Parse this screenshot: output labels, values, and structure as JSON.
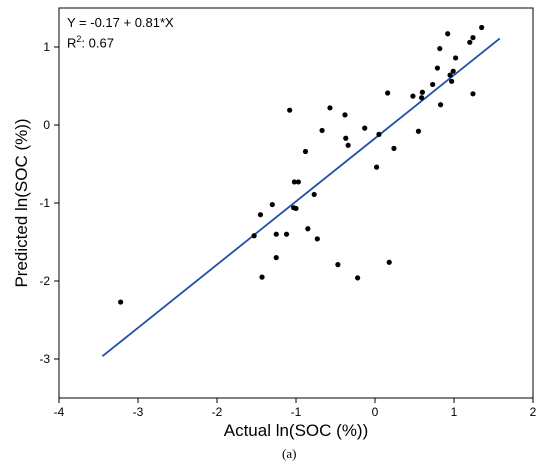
{
  "chart_data": {
    "type": "scatter",
    "xlabel": "Actual ln(SOC (%))",
    "ylabel": "Predicted ln(SOC (%))",
    "xlim": [
      -4,
      2
    ],
    "ylim": [
      -3.5,
      1.5
    ],
    "x_ticks": [
      -4,
      -3,
      -2,
      -1,
      0,
      1,
      2
    ],
    "y_ticks": [
      -3,
      -2,
      -1,
      0,
      1
    ],
    "grid": false,
    "annotations": {
      "equation": "Y = -0.17 + 0.81*X",
      "r2_prefix": "R",
      "r2_sup": "2",
      "r2_value": ": 0.67"
    },
    "fit_line": {
      "intercept": -0.17,
      "slope": 0.81,
      "x_range": [
        -3.45,
        1.58
      ],
      "color": "#1f4fa8"
    },
    "point_color": "#000000",
    "points": [
      {
        "x": -3.22,
        "y": -2.27
      },
      {
        "x": -1.53,
        "y": -1.42
      },
      {
        "x": -1.45,
        "y": -1.15
      },
      {
        "x": -1.43,
        "y": -1.95
      },
      {
        "x": -1.3,
        "y": -1.02
      },
      {
        "x": -1.25,
        "y": -1.4
      },
      {
        "x": -1.25,
        "y": -1.7
      },
      {
        "x": -1.12,
        "y": -1.4
      },
      {
        "x": -1.08,
        "y": 0.19
      },
      {
        "x": -1.03,
        "y": -1.06
      },
      {
        "x": -1.02,
        "y": -0.73
      },
      {
        "x": -1.0,
        "y": -1.07
      },
      {
        "x": -0.97,
        "y": -0.73
      },
      {
        "x": -0.88,
        "y": -0.34
      },
      {
        "x": -0.85,
        "y": -1.33
      },
      {
        "x": -0.77,
        "y": -0.89
      },
      {
        "x": -0.73,
        "y": -1.46
      },
      {
        "x": -0.67,
        "y": -0.07
      },
      {
        "x": -0.57,
        "y": 0.22
      },
      {
        "x": -0.47,
        "y": -1.79
      },
      {
        "x": -0.38,
        "y": 0.13
      },
      {
        "x": -0.37,
        "y": -0.17
      },
      {
        "x": -0.34,
        "y": -0.26
      },
      {
        "x": -0.22,
        "y": -1.96
      },
      {
        "x": -0.13,
        "y": -0.04
      },
      {
        "x": 0.02,
        "y": -0.54
      },
      {
        "x": 0.05,
        "y": -0.12
      },
      {
        "x": 0.16,
        "y": 0.41
      },
      {
        "x": 0.18,
        "y": -1.76
      },
      {
        "x": 0.24,
        "y": -0.3
      },
      {
        "x": 0.48,
        "y": 0.37
      },
      {
        "x": 0.55,
        "y": -0.08
      },
      {
        "x": 0.59,
        "y": 0.35
      },
      {
        "x": 0.6,
        "y": 0.42
      },
      {
        "x": 0.73,
        "y": 0.52
      },
      {
        "x": 0.79,
        "y": 0.73
      },
      {
        "x": 0.82,
        "y": 0.98
      },
      {
        "x": 0.83,
        "y": 0.26
      },
      {
        "x": 0.92,
        "y": 1.17
      },
      {
        "x": 0.95,
        "y": 0.64
      },
      {
        "x": 0.97,
        "y": 0.56
      },
      {
        "x": 0.99,
        "y": 0.69
      },
      {
        "x": 1.02,
        "y": 0.86
      },
      {
        "x": 1.2,
        "y": 1.06
      },
      {
        "x": 1.24,
        "y": 0.4
      },
      {
        "x": 1.24,
        "y": 1.12
      },
      {
        "x": 1.35,
        "y": 1.25
      }
    ]
  },
  "caption": "(a)"
}
